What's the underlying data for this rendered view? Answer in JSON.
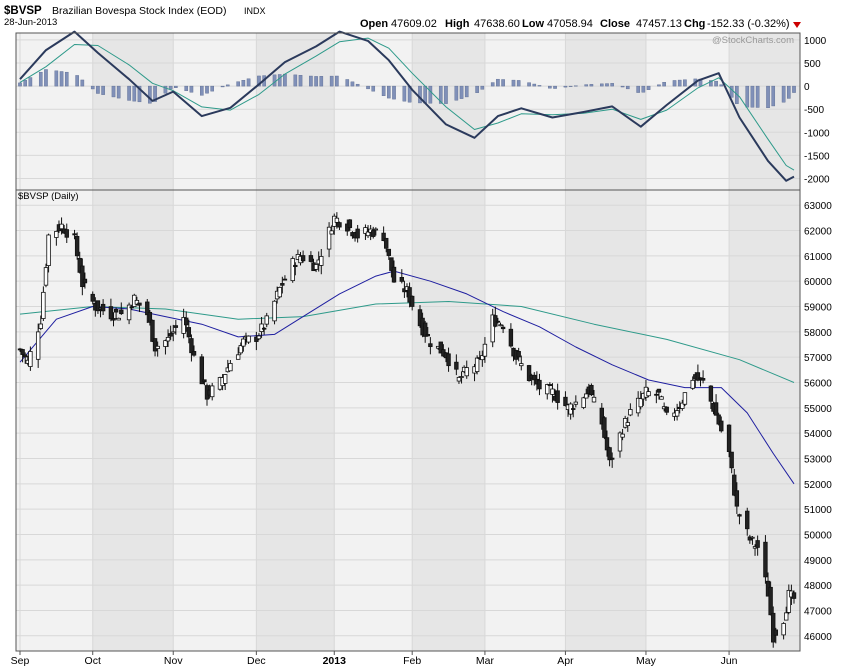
{
  "header": {
    "symbol": "$BVSP",
    "name": "Brazilian Bovespa Stock Index (EOD)",
    "exchange": "INDX",
    "date": "28-Jun-2013",
    "open_label": "Open",
    "open_value": "47609.02",
    "high_label": "High",
    "high_value": "47638.60",
    "low_label": "Low",
    "low_value": "47058.94",
    "close_label": "Close",
    "close_value": "47457.13",
    "chg_label": "Chg",
    "chg_value": "-152.33 (-0.32%)",
    "watermark": "@StockCharts.com"
  },
  "colors": {
    "background": "#ffffff",
    "panel_fill": "#f2f2f2",
    "band_fill": "#e6e6e6",
    "grid": "#d8d8d8",
    "up": "#ffffff",
    "down": "#222222",
    "candle_edge": "#111111",
    "ma_short": "#1f1fa0",
    "ma_long": "#2e9a8a",
    "macd_line": "#2b3a5c",
    "signal_line": "#2e9a8a",
    "histogram": "#8090b8",
    "chg_arrow": "#cc0000"
  },
  "chart_data": [
    {
      "type": "line",
      "panel": "MACD",
      "x_range": [
        "2012-09-03",
        "2013-06-28"
      ],
      "y_ticks": [
        1000,
        500,
        0,
        -500,
        -1000,
        -1500,
        -2000
      ],
      "ylim": [
        -2250,
        1150
      ],
      "series_macd": [
        {
          "x": "2012-09-03",
          "y": 150
        },
        {
          "x": "2012-09-13",
          "y": 780
        },
        {
          "x": "2012-09-24",
          "y": 1180
        },
        {
          "x": "2012-10-03",
          "y": 720
        },
        {
          "x": "2012-10-15",
          "y": 150
        },
        {
          "x": "2012-10-24",
          "y": -320
        },
        {
          "x": "2012-11-01",
          "y": -120
        },
        {
          "x": "2012-11-12",
          "y": -650
        },
        {
          "x": "2012-11-23",
          "y": -470
        },
        {
          "x": "2012-12-04",
          "y": 40
        },
        {
          "x": "2012-12-14",
          "y": 520
        },
        {
          "x": "2012-12-26",
          "y": 860
        },
        {
          "x": "2013-01-04",
          "y": 1180
        },
        {
          "x": "2013-01-15",
          "y": 980
        },
        {
          "x": "2013-01-23",
          "y": 560
        },
        {
          "x": "2013-02-01",
          "y": -80
        },
        {
          "x": "2013-02-14",
          "y": -830
        },
        {
          "x": "2013-02-25",
          "y": -1120
        },
        {
          "x": "2013-03-06",
          "y": -650
        },
        {
          "x": "2013-03-15",
          "y": -480
        },
        {
          "x": "2013-03-27",
          "y": -680
        },
        {
          "x": "2013-04-08",
          "y": -560
        },
        {
          "x": "2013-04-19",
          "y": -440
        },
        {
          "x": "2013-04-30",
          "y": -880
        },
        {
          "x": "2013-05-10",
          "y": -410
        },
        {
          "x": "2013-05-22",
          "y": 120
        },
        {
          "x": "2013-05-30",
          "y": 280
        },
        {
          "x": "2013-06-07",
          "y": -680
        },
        {
          "x": "2013-06-18",
          "y": -1620
        },
        {
          "x": "2013-06-25",
          "y": -2050
        },
        {
          "x": "2013-06-28",
          "y": -1960
        }
      ],
      "series_signal": [
        {
          "x": "2012-09-03",
          "y": 80
        },
        {
          "x": "2012-09-13",
          "y": 420
        },
        {
          "x": "2012-09-24",
          "y": 900
        },
        {
          "x": "2012-10-03",
          "y": 880
        },
        {
          "x": "2012-10-15",
          "y": 460
        },
        {
          "x": "2012-10-24",
          "y": 60
        },
        {
          "x": "2012-11-01",
          "y": -100
        },
        {
          "x": "2012-11-12",
          "y": -450
        },
        {
          "x": "2012-11-23",
          "y": -520
        },
        {
          "x": "2012-12-04",
          "y": -180
        },
        {
          "x": "2012-12-14",
          "y": 260
        },
        {
          "x": "2012-12-26",
          "y": 650
        },
        {
          "x": "2013-01-04",
          "y": 960
        },
        {
          "x": "2013-01-15",
          "y": 1040
        },
        {
          "x": "2013-01-23",
          "y": 820
        },
        {
          "x": "2013-02-01",
          "y": 280
        },
        {
          "x": "2013-02-14",
          "y": -450
        },
        {
          "x": "2013-02-25",
          "y": -940
        },
        {
          "x": "2013-03-06",
          "y": -800
        },
        {
          "x": "2013-03-15",
          "y": -600
        },
        {
          "x": "2013-03-27",
          "y": -620
        },
        {
          "x": "2013-04-08",
          "y": -590
        },
        {
          "x": "2013-04-19",
          "y": -500
        },
        {
          "x": "2013-04-30",
          "y": -720
        },
        {
          "x": "2013-05-10",
          "y": -520
        },
        {
          "x": "2013-05-22",
          "y": -40
        },
        {
          "x": "2013-05-30",
          "y": 180
        },
        {
          "x": "2013-06-07",
          "y": -230
        },
        {
          "x": "2013-06-18",
          "y": -1150
        },
        {
          "x": "2013-06-25",
          "y": -1720
        },
        {
          "x": "2013-06-28",
          "y": -1820
        }
      ],
      "y_axis_side": "right",
      "grid": true
    },
    {
      "type": "candlestick",
      "panel": "Price",
      "title": "$BVSP (Daily)",
      "x_range": [
        "2012-09-03",
        "2013-06-28"
      ],
      "x_tick_labels": [
        "Sep",
        "Oct",
        "Nov",
        "Dec",
        "2013",
        "Feb",
        "Mar",
        "Apr",
        "May",
        "Jun"
      ],
      "x_tick_dates": [
        "2012-09-03",
        "2012-10-01",
        "2012-11-01",
        "2012-12-03",
        "2013-01-02",
        "2013-02-01",
        "2013-03-01",
        "2013-04-01",
        "2013-05-02",
        "2013-06-03"
      ],
      "y_ticks": [
        63000,
        62000,
        61000,
        60000,
        59000,
        58000,
        57000,
        56000,
        55000,
        54000,
        53000,
        52000,
        51000,
        50000,
        49000,
        48000,
        47000,
        46000
      ],
      "ylim": [
        45400,
        63600
      ],
      "close_path": [
        {
          "x": "2012-09-03",
          "y": 57300
        },
        {
          "x": "2012-09-06",
          "y": 56800
        },
        {
          "x": "2012-09-11",
          "y": 58500
        },
        {
          "x": "2012-09-14",
          "y": 61800
        },
        {
          "x": "2012-09-19",
          "y": 62200
        },
        {
          "x": "2012-09-24",
          "y": 61600
        },
        {
          "x": "2012-09-27",
          "y": 59900
        },
        {
          "x": "2012-10-02",
          "y": 59000
        },
        {
          "x": "2012-10-08",
          "y": 58700
        },
        {
          "x": "2012-10-12",
          "y": 58700
        },
        {
          "x": "2012-10-17",
          "y": 59300
        },
        {
          "x": "2012-10-22",
          "y": 58700
        },
        {
          "x": "2012-10-25",
          "y": 57400
        },
        {
          "x": "2012-10-30",
          "y": 57700
        },
        {
          "x": "2012-11-05",
          "y": 58600
        },
        {
          "x": "2012-11-09",
          "y": 57000
        },
        {
          "x": "2012-11-14",
          "y": 55500
        },
        {
          "x": "2012-11-19",
          "y": 56000
        },
        {
          "x": "2012-11-23",
          "y": 56800
        },
        {
          "x": "2012-11-28",
          "y": 57600
        },
        {
          "x": "2012-12-03",
          "y": 57800
        },
        {
          "x": "2012-12-07",
          "y": 58400
        },
        {
          "x": "2012-12-12",
          "y": 59700
        },
        {
          "x": "2012-12-17",
          "y": 60700
        },
        {
          "x": "2012-12-20",
          "y": 61000
        },
        {
          "x": "2012-12-26",
          "y": 60600
        },
        {
          "x": "2013-01-02",
          "y": 62500
        },
        {
          "x": "2013-01-07",
          "y": 62200
        },
        {
          "x": "2013-01-11",
          "y": 61800
        },
        {
          "x": "2013-01-16",
          "y": 62000
        },
        {
          "x": "2013-01-21",
          "y": 61800
        },
        {
          "x": "2013-01-25",
          "y": 60000
        },
        {
          "x": "2013-01-30",
          "y": 59600
        },
        {
          "x": "2013-02-04",
          "y": 58300
        },
        {
          "x": "2013-02-08",
          "y": 57600
        },
        {
          "x": "2013-02-14",
          "y": 57100
        },
        {
          "x": "2013-02-19",
          "y": 56100
        },
        {
          "x": "2013-02-22",
          "y": 56500
        },
        {
          "x": "2013-02-27",
          "y": 56800
        },
        {
          "x": "2013-03-04",
          "y": 58500
        },
        {
          "x": "2013-03-08",
          "y": 58300
        },
        {
          "x": "2013-03-13",
          "y": 57000
        },
        {
          "x": "2013-03-18",
          "y": 56200
        },
        {
          "x": "2013-03-22",
          "y": 55800
        },
        {
          "x": "2013-03-27",
          "y": 55600
        },
        {
          "x": "2013-04-02",
          "y": 55000
        },
        {
          "x": "2013-04-05",
          "y": 55200
        },
        {
          "x": "2013-04-10",
          "y": 55700
        },
        {
          "x": "2013-04-15",
          "y": 54400
        },
        {
          "x": "2013-04-18",
          "y": 52800
        },
        {
          "x": "2013-04-23",
          "y": 54200
        },
        {
          "x": "2013-04-26",
          "y": 54800
        },
        {
          "x": "2013-05-02",
          "y": 55600
        },
        {
          "x": "2013-05-07",
          "y": 55500
        },
        {
          "x": "2013-05-10",
          "y": 54600
        },
        {
          "x": "2013-05-15",
          "y": 55100
        },
        {
          "x": "2013-05-20",
          "y": 56200
        },
        {
          "x": "2013-05-24",
          "y": 56000
        },
        {
          "x": "2013-05-28",
          "y": 55000
        },
        {
          "x": "2013-06-03",
          "y": 53200
        },
        {
          "x": "2013-06-06",
          "y": 51000
        },
        {
          "x": "2013-06-11",
          "y": 49800
        },
        {
          "x": "2013-06-14",
          "y": 49500
        },
        {
          "x": "2013-06-18",
          "y": 47700
        },
        {
          "x": "2013-06-20",
          "y": 46000
        },
        {
          "x": "2013-06-24",
          "y": 46700
        },
        {
          "x": "2013-06-26",
          "y": 47600
        },
        {
          "x": "2013-06-28",
          "y": 47457
        }
      ],
      "ma_short": [
        {
          "x": "2012-09-03",
          "y": 56800
        },
        {
          "x": "2012-09-17",
          "y": 58500
        },
        {
          "x": "2012-10-01",
          "y": 59000
        },
        {
          "x": "2012-10-15",
          "y": 58900
        },
        {
          "x": "2012-10-29",
          "y": 58600
        },
        {
          "x": "2012-11-12",
          "y": 58300
        },
        {
          "x": "2012-11-26",
          "y": 57800
        },
        {
          "x": "2012-12-10",
          "y": 57900
        },
        {
          "x": "2012-12-21",
          "y": 58600
        },
        {
          "x": "2013-01-04",
          "y": 59500
        },
        {
          "x": "2013-01-18",
          "y": 60200
        },
        {
          "x": "2013-01-25",
          "y": 60400
        },
        {
          "x": "2013-02-08",
          "y": 60000
        },
        {
          "x": "2013-02-22",
          "y": 59500
        },
        {
          "x": "2013-03-08",
          "y": 58800
        },
        {
          "x": "2013-03-22",
          "y": 58200
        },
        {
          "x": "2013-04-05",
          "y": 57400
        },
        {
          "x": "2013-04-19",
          "y": 56700
        },
        {
          "x": "2013-05-03",
          "y": 56100
        },
        {
          "x": "2013-05-17",
          "y": 55800
        },
        {
          "x": "2013-05-31",
          "y": 55800
        },
        {
          "x": "2013-06-10",
          "y": 54800
        },
        {
          "x": "2013-06-20",
          "y": 53200
        },
        {
          "x": "2013-06-28",
          "y": 52000
        }
      ],
      "ma_long": [
        {
          "x": "2012-09-03",
          "y": 58700
        },
        {
          "x": "2012-10-01",
          "y": 59000
        },
        {
          "x": "2012-10-29",
          "y": 58900
        },
        {
          "x": "2012-11-26",
          "y": 58500
        },
        {
          "x": "2012-12-21",
          "y": 58600
        },
        {
          "x": "2013-01-18",
          "y": 59100
        },
        {
          "x": "2013-02-15",
          "y": 59200
        },
        {
          "x": "2013-03-15",
          "y": 59000
        },
        {
          "x": "2013-04-12",
          "y": 58300
        },
        {
          "x": "2013-05-10",
          "y": 57700
        },
        {
          "x": "2013-06-07",
          "y": 56900
        },
        {
          "x": "2013-06-28",
          "y": 56000
        }
      ],
      "y_axis_side": "right",
      "grid": true
    }
  ]
}
